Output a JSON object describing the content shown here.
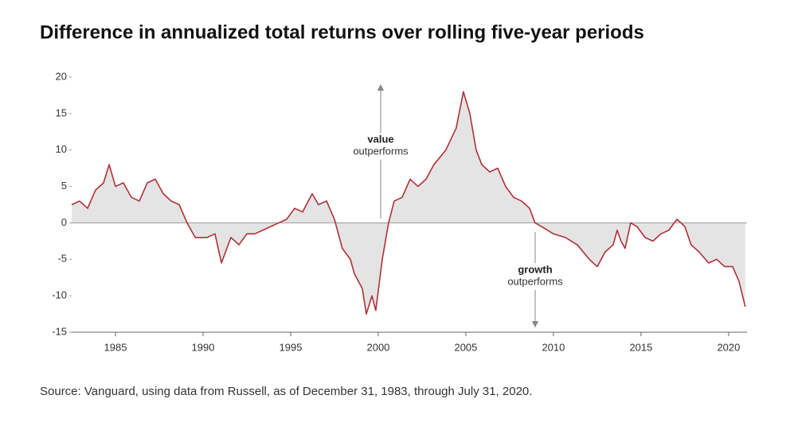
{
  "chart_data": {
    "type": "line",
    "title": "Difference in annualized total returns over rolling five-year periods",
    "source": "Source: Vanguard, using data from Russell, as of December 31, 1983, through July 31, 2020.",
    "annotations": [
      {
        "title": "value",
        "text": "outperforms"
      },
      {
        "title": "growth",
        "text": "outperforms"
      }
    ],
    "xlim": [
      1982.5,
      2021.05
    ],
    "xticks": [
      1985,
      1990,
      1995,
      2000,
      2005,
      2010,
      2015,
      2020
    ],
    "ylim": [
      -15,
      20
    ],
    "yticks": [
      -15,
      -10,
      -5,
      0,
      5,
      10,
      15,
      20
    ],
    "fill_color": "#e4e4e4",
    "series": [
      {
        "color": "#b0303a",
        "x": [
          1982.5,
          1982.95,
          1983.41,
          1983.86,
          1984.32,
          1984.64,
          1985,
          1985.45,
          1985.91,
          1986.36,
          1986.82,
          1987.27,
          1987.73,
          1988.18,
          1988.64,
          1989.09,
          1989.55,
          1990.23,
          1990.68,
          1991.05,
          1991.59,
          1992.05,
          1992.5,
          1992.95,
          1993.41,
          1993.86,
          1994.32,
          1994.77,
          1995.23,
          1995.68,
          1996.23,
          1996.59,
          1997.05,
          1997.5,
          1997.95,
          1998.41,
          1998.64,
          1999.09,
          1999.32,
          1999.64,
          1999.86,
          2000.23,
          2000.59,
          2000.91,
          2001.36,
          2001.82,
          2002.27,
          2002.73,
          2003.18,
          2003.86,
          2004.45,
          2004.86,
          2005.23,
          2005.59,
          2005.91,
          2006.36,
          2006.82,
          2007.27,
          2007.73,
          2008.18,
          2008.64,
          2008.95,
          2009.32,
          2010,
          2010.68,
          2011.36,
          2012.05,
          2012.5,
          2012.95,
          2013.41,
          2013.64,
          2013.86,
          2014.09,
          2014.41,
          2014.77,
          2015.23,
          2015.68,
          2016.14,
          2016.59,
          2017.05,
          2017.5,
          2017.86,
          2018.32,
          2018.86,
          2019.32,
          2019.77,
          2020.23,
          2020.59,
          2020.95
        ],
        "values": [
          2.5,
          3,
          2,
          4.5,
          5.5,
          8,
          5,
          5.5,
          3.5,
          3,
          5.5,
          6,
          4,
          3,
          2.5,
          0,
          -2,
          -2,
          -1.5,
          -5.5,
          -2,
          -3,
          -1.5,
          -1.5,
          -1,
          -0.5,
          0,
          0.5,
          2,
          1.5,
          4,
          2.5,
          3,
          0.5,
          -3.5,
          -5,
          -7,
          -9,
          -12.5,
          -10,
          -12,
          -5,
          0,
          3,
          3.5,
          6,
          5,
          6,
          8,
          10,
          13,
          18,
          15,
          10,
          8,
          7,
          7.5,
          5,
          3.5,
          3,
          2,
          0,
          -0.5,
          -1.5,
          -2,
          -3,
          -5,
          -6,
          -4,
          -3,
          -1,
          -2.5,
          -3.5,
          0,
          -0.5,
          -2,
          -2.5,
          -1.5,
          -1,
          0.5,
          -0.5,
          -3,
          -4,
          -5.5,
          -5,
          -6,
          -6,
          -8,
          -11.5
        ]
      }
    ]
  }
}
